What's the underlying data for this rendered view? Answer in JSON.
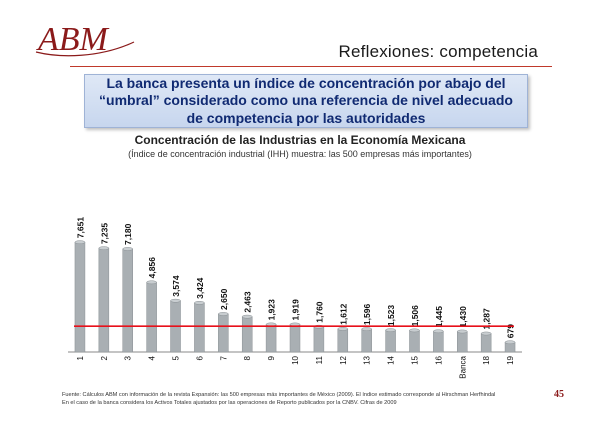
{
  "brand": {
    "logo_text": "ABM",
    "logo_color": "#8b1a1a"
  },
  "slide": {
    "title": "Reflexiones: competencia",
    "headline": "La banca presenta un índice de concentración por abajo del “umbral” considerado como una referencia de nivel adecuado de competencia por las autoridades",
    "footnote_line1": "Fuente: Cálculos ABM con información de la revista Expansión: las 500 empresas más importantes de México (2009). El índice estimado corresponde al Hirschman Herfhindal",
    "footnote_line2": "En el caso de la banca considera los Activos Totales ajustados por las operaciones de Reporto publicados por la CNBV. Cifras de 2009",
    "page_number": "45"
  },
  "colors": {
    "bar": "#a9afb3",
    "threshold": "#e8101a",
    "headline_text": "#102a72"
  },
  "chart_data": {
    "type": "bar",
    "title": "Concentración de las Industrias en la Economía Mexicana",
    "subtitle": "(Índice de concentración industrial (IHH) muestra: las 500 empresas más importantes)",
    "categories": [
      "1",
      "2",
      "3",
      "4",
      "5",
      "6",
      "7",
      "8",
      "9",
      "10",
      "11",
      "12",
      "13",
      "14",
      "15",
      "16",
      "Banca",
      "18",
      "19"
    ],
    "values": [
      7651,
      7235,
      7180,
      4856,
      3574,
      3424,
      2650,
      2463,
      1923,
      1919,
      1760,
      1612,
      1596,
      1523,
      1506,
      1445,
      1430,
      1287,
      679
    ],
    "labels": [
      "7,651",
      "7,235",
      "7,180",
      "4,856",
      "3,574",
      "3,424",
      "2,650",
      "2,463",
      "1,923",
      "1,919",
      "1,760",
      "1,612",
      "1,596",
      "1,523",
      "1,506",
      "1,445",
      "1,430",
      "1,287",
      "679"
    ],
    "threshold": 1800,
    "ylim": [
      0,
      9000
    ],
    "grid": false,
    "legend": "none"
  }
}
